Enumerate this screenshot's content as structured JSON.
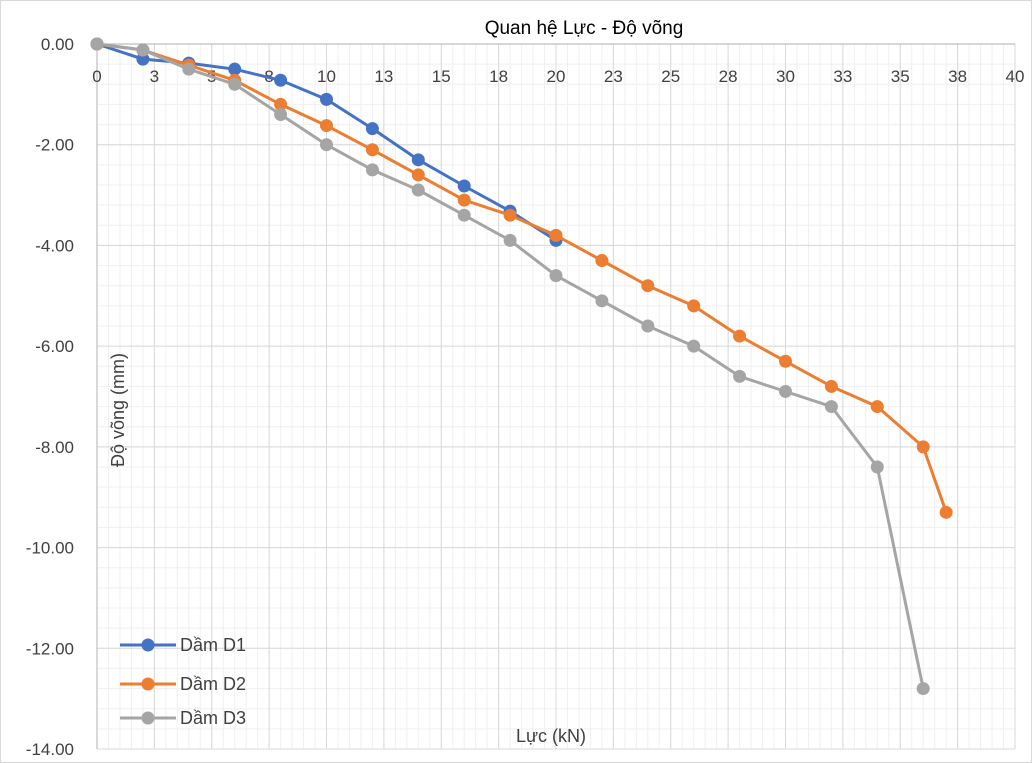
{
  "chart_data": {
    "type": "line",
    "title": "Quan hệ Lực - Độ võng",
    "xlabel": "Lực (kN)",
    "ylabel": "Độ võng (mm)",
    "xlim": [
      0,
      40
    ],
    "ylim": [
      -14,
      0
    ],
    "x_tick_labels": [
      "0",
      "3",
      "5",
      "8",
      "10",
      "13",
      "15",
      "18",
      "20",
      "23",
      "25",
      "28",
      "30",
      "33",
      "35",
      "38",
      "40"
    ],
    "y_tick_labels": [
      "0.00",
      "-2.00",
      "-4.00",
      "-6.00",
      "-8.00",
      "-10.00",
      "-12.00",
      "-14.00"
    ],
    "grid": true,
    "legend_position": "bottom-left",
    "series": [
      {
        "name": "Dầm D1",
        "color": "#4472C4",
        "points": [
          [
            0,
            0
          ],
          [
            2,
            -0.3
          ],
          [
            4,
            -0.38
          ],
          [
            6,
            -0.5
          ],
          [
            8,
            -0.72
          ],
          [
            10,
            -1.1
          ],
          [
            12,
            -1.68
          ],
          [
            14,
            -2.3
          ],
          [
            16,
            -2.82
          ],
          [
            18,
            -3.32
          ],
          [
            20,
            -3.9
          ]
        ]
      },
      {
        "name": "Dầm D2",
        "color": "#ED7D31",
        "points": [
          [
            0,
            0
          ],
          [
            2,
            -0.12
          ],
          [
            4,
            -0.42
          ],
          [
            6,
            -0.72
          ],
          [
            8,
            -1.2
          ],
          [
            10,
            -1.62
          ],
          [
            12,
            -2.1
          ],
          [
            14,
            -2.6
          ],
          [
            16,
            -3.1
          ],
          [
            18,
            -3.4
          ],
          [
            20,
            -3.8
          ],
          [
            22,
            -4.3
          ],
          [
            24,
            -4.8
          ],
          [
            26,
            -5.2
          ],
          [
            28,
            -5.8
          ],
          [
            30,
            -6.3
          ],
          [
            32,
            -6.8
          ],
          [
            34,
            -7.2
          ],
          [
            36,
            -8.0
          ],
          [
            37,
            -9.3
          ]
        ]
      },
      {
        "name": "Dầm D3",
        "color": "#A5A5A5",
        "points": [
          [
            0,
            0
          ],
          [
            2,
            -0.12
          ],
          [
            4,
            -0.5
          ],
          [
            6,
            -0.8
          ],
          [
            8,
            -1.4
          ],
          [
            10,
            -2.0
          ],
          [
            12,
            -2.5
          ],
          [
            14,
            -2.9
          ],
          [
            16,
            -3.4
          ],
          [
            18,
            -3.9
          ],
          [
            20,
            -4.6
          ],
          [
            22,
            -5.1
          ],
          [
            24,
            -5.6
          ],
          [
            26,
            -6.0
          ],
          [
            28,
            -6.6
          ],
          [
            30,
            -6.9
          ],
          [
            32,
            -7.2
          ],
          [
            34,
            -8.4
          ],
          [
            36,
            -12.8
          ]
        ]
      }
    ]
  }
}
